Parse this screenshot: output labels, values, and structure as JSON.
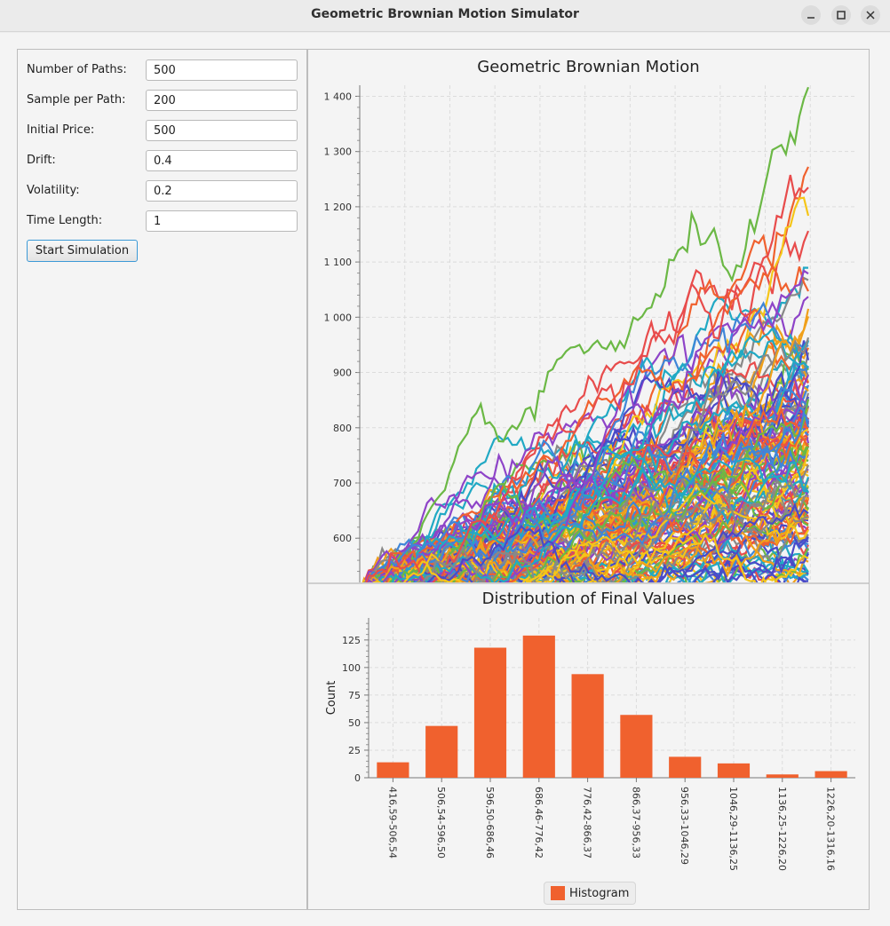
{
  "window": {
    "title": "Geometric Brownian Motion Simulator"
  },
  "form": {
    "fields": [
      {
        "label": "Number of Paths:",
        "value": "500"
      },
      {
        "label": "Sample per Path:",
        "value": "200"
      },
      {
        "label": "Initial Price:",
        "value": "500"
      },
      {
        "label": "Drift:",
        "value": "0.4"
      },
      {
        "label": "Volatility:",
        "value": "0.2"
      },
      {
        "label": "Time Length:",
        "value": "1"
      }
    ],
    "start_button": "Start Simulation"
  },
  "chart_data": [
    {
      "type": "line",
      "title": "Geometric Brownian Motion",
      "ylim": [
        520,
        1420
      ],
      "yticks": [
        "1 400",
        "1 300",
        "1 200",
        "1 100",
        "1 000",
        "900",
        "800",
        "700",
        "600"
      ],
      "ytick_values": [
        1400,
        1300,
        1200,
        1100,
        1000,
        900,
        800,
        700,
        600
      ],
      "grid": true,
      "series_count": 500,
      "samples_per_path": 200,
      "initial_price": 500,
      "series_colors": [
        "#f0612e",
        "#f0a01a",
        "#6bb845",
        "#3f86d8",
        "#8e44c8",
        "#e84c4c",
        "#21a9c4",
        "#888888",
        "#4a4ac8",
        "#f5c518"
      ]
    },
    {
      "type": "bar",
      "title": "Distribution of Final Values",
      "ylabel": "Count",
      "ylim": [
        0,
        145
      ],
      "yticks": [
        0,
        25,
        50,
        75,
        100,
        125
      ],
      "categories": [
        "416,59-506,54",
        "506,54-596,50",
        "596,50-686,46",
        "686,46-776,42",
        "776,42-866,37",
        "866,37-956,33",
        "956,33-1046,29",
        "1046,29-1136,25",
        "1136,25-1226,20",
        "1226,20-1316,16"
      ],
      "series": [
        {
          "name": "Histogram",
          "values": [
            14,
            47,
            118,
            129,
            94,
            57,
            19,
            13,
            3,
            6
          ],
          "color": "#f0612e"
        }
      ],
      "legend": "bottom"
    }
  ]
}
